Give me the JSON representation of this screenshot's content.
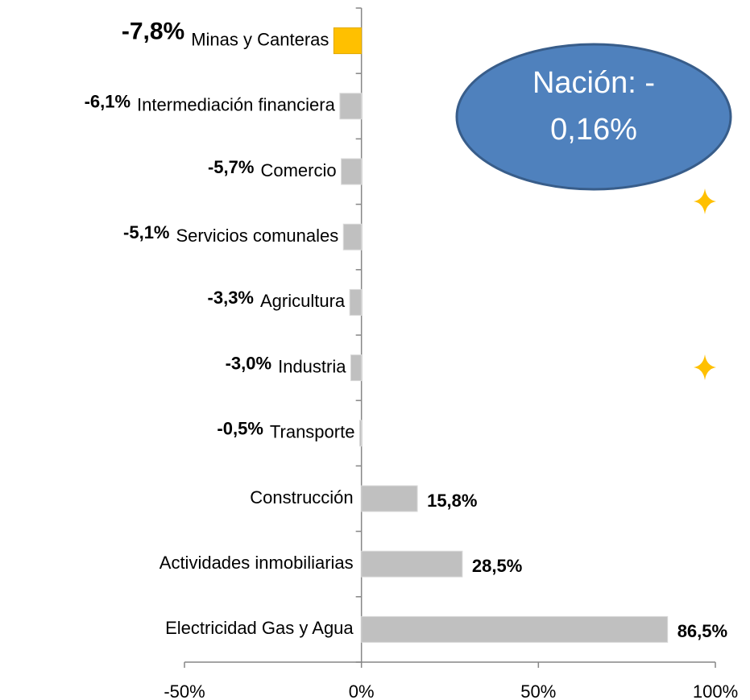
{
  "chart_data": {
    "type": "hbar",
    "categories": [
      "Minas y Canteras",
      "Intermediación financiera",
      "Comercio",
      "Servicios comunales",
      "Agricultura",
      "Industria",
      "Transporte",
      "Construcción",
      "Actividades inmobiliarias",
      "Electricidad Gas y Agua"
    ],
    "values": [
      -7.8,
      -6.1,
      -5.7,
      -5.1,
      -3.3,
      -3.0,
      -0.5,
      15.8,
      28.5,
      86.5
    ],
    "value_labels": [
      "-7,8%",
      "-6,1%",
      "-5,7%",
      "-5,1%",
      "-3,3%",
      "-3,0%",
      "-0,5%",
      "15,8%",
      "28,5%",
      "86,5%"
    ],
    "colors": [
      "#FFC000",
      "#C0C0C0",
      "#C0C0C0",
      "#C0C0C0",
      "#C0C0C0",
      "#C0C0C0",
      "#C0C0C0",
      "#C0C0C0",
      "#C0C0C0",
      "#C0C0C0"
    ],
    "xlim": [
      -50,
      100
    ],
    "xticks": [
      {
        "value": -50,
        "label": "-50%"
      },
      {
        "value": 0,
        "label": "0%"
      },
      {
        "value": 50,
        "label": "50%"
      },
      {
        "value": 100,
        "label": "100%"
      }
    ],
    "annotation": [
      "Nación: -",
      "0,16%"
    ]
  }
}
